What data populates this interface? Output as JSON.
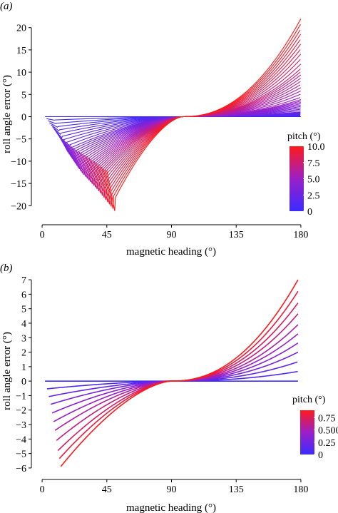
{
  "figure": {
    "panels": [
      "(a)",
      "(b)"
    ]
  },
  "colors": {
    "low": "#3b2bff",
    "mid": "#9b1fc8",
    "high": "#ff1a1a",
    "axis": "#000000"
  },
  "chart_data": [
    {
      "type": "line",
      "panel_label": "(a)",
      "xlabel": "magnetic heading (°)",
      "ylabel": "roll angle error (°)",
      "xlim": [
        -5,
        185
      ],
      "ylim": [
        -23,
        23
      ],
      "xticks": [
        0,
        45,
        90,
        135,
        180
      ],
      "yticks": [
        -20,
        -15,
        -10,
        -5,
        0,
        5,
        10,
        15,
        20
      ],
      "x_start": 2,
      "x_end": 180,
      "zero_crossing": 98,
      "legend": {
        "title": "pitch (°)",
        "position": "right",
        "min": 0,
        "max": 10,
        "ticks": [
          "10.0",
          "7.5",
          "5.0",
          "2.5",
          "0"
        ],
        "tick_values": [
          10,
          7.5,
          5,
          2.5,
          0
        ]
      },
      "series_count": 40,
      "pitch_range": [
        0,
        10
      ],
      "series_summary": [
        {
          "pitch": 0,
          "min": {
            "x": 2,
            "y": 0
          },
          "max": {
            "x": 180,
            "y": 0
          }
        },
        {
          "pitch": 2.5,
          "min": {
            "x": 12,
            "y": -8
          },
          "max": {
            "x": 180,
            "y": 1
          }
        },
        {
          "pitch": 5,
          "min": {
            "x": 22,
            "y": -13
          },
          "max": {
            "x": 180,
            "y": 4
          }
        },
        {
          "pitch": 7.5,
          "min": {
            "x": 33,
            "y": -17
          },
          "max": {
            "x": 180,
            "y": 11
          }
        },
        {
          "pitch": 10,
          "min": {
            "x": 45,
            "y": -22
          },
          "max": {
            "x": 180,
            "y": 22
          }
        }
      ]
    },
    {
      "type": "line",
      "panel_label": "(b)",
      "xlabel": "magnetic heading (°)",
      "ylabel": "roll angle error (°)",
      "xlim": [
        -5,
        185
      ],
      "ylim": [
        -6.3,
        7.3
      ],
      "xticks": [
        0,
        45,
        90,
        135,
        180
      ],
      "yticks": [
        -6,
        -5,
        -4,
        -3,
        -2,
        -1,
        0,
        1,
        2,
        3,
        4,
        5,
        6,
        7
      ],
      "x_start": 2,
      "x_end": 178,
      "zero_crossing": 90,
      "legend": {
        "title": "pitch (°)",
        "position": "right",
        "min": 0,
        "max": 0.9,
        "ticks": [
          "0.75",
          "0.500",
          "0.25",
          "0"
        ],
        "tick_values": [
          0.75,
          0.5,
          0.25,
          0
        ]
      },
      "series_count": 11,
      "pitch_range": [
        0,
        0.9
      ],
      "series_summary": [
        {
          "pitch": 0,
          "min": {
            "x": 2,
            "y": 0
          },
          "max": {
            "x": 178,
            "y": 0
          }
        },
        {
          "pitch": 0.27,
          "min": {
            "x": 6,
            "y": -1.6
          },
          "max": {
            "x": 178,
            "y": 2.0
          }
        },
        {
          "pitch": 0.54,
          "min": {
            "x": 9,
            "y": -3.4
          },
          "max": {
            "x": 178,
            "y": 3.9
          }
        },
        {
          "pitch": 0.72,
          "min": {
            "x": 11,
            "y": -4.8
          },
          "max": {
            "x": 178,
            "y": 5.4
          }
        },
        {
          "pitch": 0.9,
          "min": {
            "x": 13,
            "y": -5.9
          },
          "max": {
            "x": 178,
            "y": 7.0
          }
        }
      ]
    }
  ]
}
